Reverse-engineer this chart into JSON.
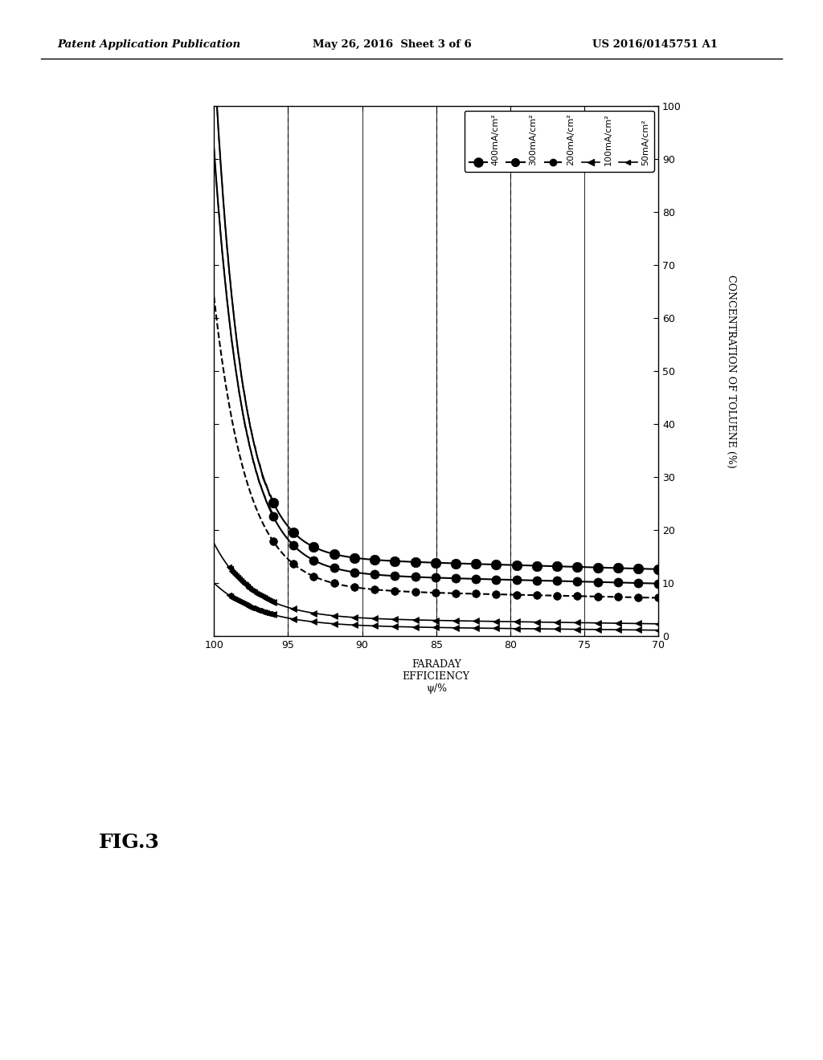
{
  "xlabel": "FARADAY\nEFFICIENCY\nψ/%",
  "ylabel": "CONCENTRATION OF TOLUENE (%)",
  "xlim_left": 100,
  "xlim_right": 70,
  "ylim_bottom": 0,
  "ylim_top": 100,
  "xticks": [
    100,
    95,
    90,
    85,
    80,
    75,
    70
  ],
  "yticks": [
    0,
    10,
    20,
    30,
    40,
    50,
    60,
    70,
    80,
    90,
    100
  ],
  "vlines_dashed": [
    95,
    85,
    80
  ],
  "vlines_solid": [
    100,
    95,
    90,
    85,
    80,
    75,
    70
  ],
  "header_left": "Patent Application Publication",
  "header_mid": "May 26, 2016  Sheet 3 of 6",
  "header_right": "US 2016/0145751 A1",
  "fig_label": "FIG.3",
  "series": [
    {
      "label": "400mA/cm²",
      "current": 400,
      "linestyle": "solid",
      "marker": "o",
      "markersize": 9,
      "linewidth": 1.5,
      "color": "black",
      "zorder": 10,
      "params": {
        "a": 95,
        "b": 0.55,
        "c": 15,
        "d": 0.08
      }
    },
    {
      "label": "300mA/cm²",
      "current": 300,
      "linestyle": "solid",
      "marker": "o",
      "markersize": 8,
      "linewidth": 1.5,
      "color": "black",
      "zorder": 9,
      "params": {
        "a": 80,
        "b": 0.5,
        "c": 12,
        "d": 0.07
      }
    },
    {
      "label": "200mA/cm²",
      "current": 200,
      "linestyle": "dashed",
      "marker": "o",
      "markersize": 7,
      "linewidth": 1.5,
      "color": "black",
      "zorder": 8,
      "params": {
        "a": 55,
        "b": 0.45,
        "c": 9,
        "d": 0.06
      }
    },
    {
      "label": "100mA/cm²",
      "current": 100,
      "linestyle": "solid",
      "marker": "v",
      "markersize": 6,
      "linewidth": 1.2,
      "color": "black",
      "zorder": 7,
      "params": {
        "a": 14,
        "b": 0.38,
        "c": 3.5,
        "d": 0.04
      }
    },
    {
      "label": "50mA/cm²",
      "current": 50,
      "linestyle": "solid",
      "marker": "v",
      "markersize": 6,
      "linewidth": 1.2,
      "color": "black",
      "zorder": 6,
      "params": {
        "a": 8,
        "b": 0.33,
        "c": 2.0,
        "d": 0.03
      }
    }
  ]
}
